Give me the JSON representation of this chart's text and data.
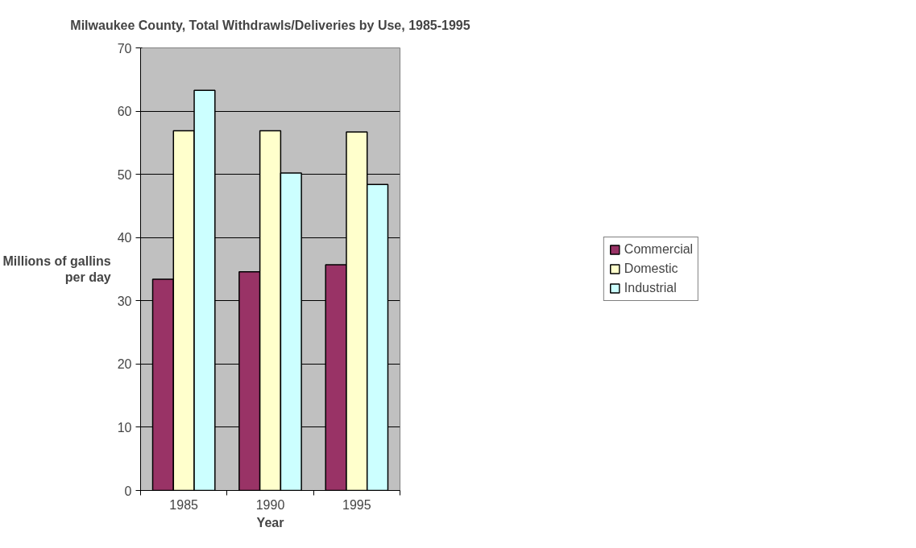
{
  "chart_data": {
    "type": "bar",
    "title": "Milwaukee County, Total Withdrawls/Deliveries by Use, 1985-1995",
    "xlabel": "Year",
    "ylabel": "Millions of gallins per day",
    "categories": [
      "1985",
      "1990",
      "1995"
    ],
    "series": [
      {
        "name": "Commercial",
        "color": "#993366",
        "values": [
          33.4,
          34.6,
          35.7
        ]
      },
      {
        "name": "Domestic",
        "color": "#ffffcc",
        "values": [
          56.9,
          56.9,
          56.7
        ]
      },
      {
        "name": "Industrial",
        "color": "#ccffff",
        "values": [
          63.3,
          50.2,
          48.4
        ]
      }
    ],
    "ylim": [
      0,
      70
    ],
    "yticks": [
      0,
      10,
      20,
      30,
      40,
      50,
      60,
      70
    ],
    "grid": "y",
    "legend": "right"
  }
}
